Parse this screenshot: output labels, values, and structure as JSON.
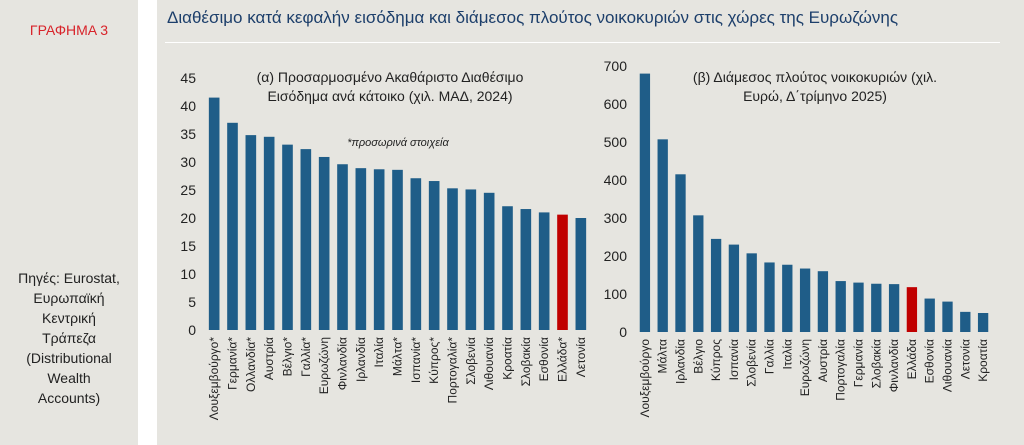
{
  "figure_label": "ΓΡΑΦΗΜΑ 3",
  "main_title": "Διαθέσιμο κατά κεφαλήν εισόδημα και διάμεσος πλούτος νοικοκυριών στις χώρες της Ευρωζώνης",
  "sources": [
    "Πηγές: Eurostat,",
    "Ευρωπαϊκή",
    "Κεντρική",
    "Τράπεζα",
    "(Distributional",
    "Wealth",
    "Accounts)"
  ],
  "colors": {
    "bar": "#1f5d88",
    "highlight": "#c00000"
  },
  "chart_data": [
    {
      "type": "bar",
      "title": [
        "(α) Προσαρμοσμένο Ακαθάριστο Διαθέσιμο",
        "Εισόδημα ανά κάτοικο (χιλ. ΜΑΔ, 2024)"
      ],
      "annotation": "*προσωρινά στοιχεία",
      "categories": [
        "Λουξεμβούργο*",
        "Γερμανία*",
        "Ολλανδία*",
        "Αυστρία",
        "Βέλγιο*",
        "Γαλλία*",
        "Ευρωζώνη",
        "Φινλανδία",
        "Ιρλανδία",
        "Ιταλία",
        "Μάλτα*",
        "Ισπανία*",
        "Κύπρος*",
        "Πορτογαλία*",
        "Σλοβενία",
        "Λιθουανία",
        "Κροατία",
        "Σλοβακία",
        "Εσθονία",
        "Ελλάδα*",
        "Λετονία"
      ],
      "values": [
        41.5,
        37,
        34.8,
        34.5,
        33.1,
        32.3,
        30.9,
        29.6,
        28.9,
        28.7,
        28.6,
        27.1,
        26.6,
        25.3,
        25.1,
        24.5,
        22.1,
        21.6,
        21.0,
        20.6,
        20.0
      ],
      "highlight": "Ελλάδα*",
      "ylim": [
        0,
        45
      ],
      "yticks": [
        0,
        5,
        10,
        15,
        20,
        25,
        30,
        35,
        40,
        45
      ],
      "ytick_labels": [
        "0",
        "5",
        "10",
        "15",
        "20",
        "25",
        "30",
        "35",
        "40",
        "45"
      ],
      "grid": false
    },
    {
      "type": "bar",
      "title": [
        "(β) Διάμεσος πλούτος νοικοκυριών (χιλ.",
        "Ευρώ, Δ΄τρίμηνο 2025)"
      ],
      "categories": [
        "Λουξεμβούργο",
        "Μάλτα",
        "Ιρλανδία",
        "Βέλγιο",
        "Κύπρος",
        "Ισπανία",
        "Σλοβενία",
        "Γαλλία",
        "Ιταλία",
        "Ευρωζώνη",
        "Αυστρία",
        "Πορτογαλία",
        "Γερμανία",
        "Σλοβακία",
        "Φινλανδία",
        "Ελλάδα",
        "Εσθονία",
        "Λιθουανία",
        "Λετονία",
        "Κροατία"
      ],
      "values": [
        680,
        507,
        415,
        307,
        245,
        230,
        207,
        183,
        177,
        167,
        160,
        134,
        130,
        127,
        126,
        118,
        88,
        80,
        53,
        50
      ],
      "highlight": "Ελλάδα",
      "ylim": [
        0,
        700
      ],
      "yticks": [
        0,
        100,
        200,
        300,
        400,
        500,
        600,
        700
      ],
      "ytick_labels": [
        "0",
        "100",
        "200",
        "300",
        "400",
        "500",
        "600",
        "700"
      ],
      "grid": false
    }
  ]
}
